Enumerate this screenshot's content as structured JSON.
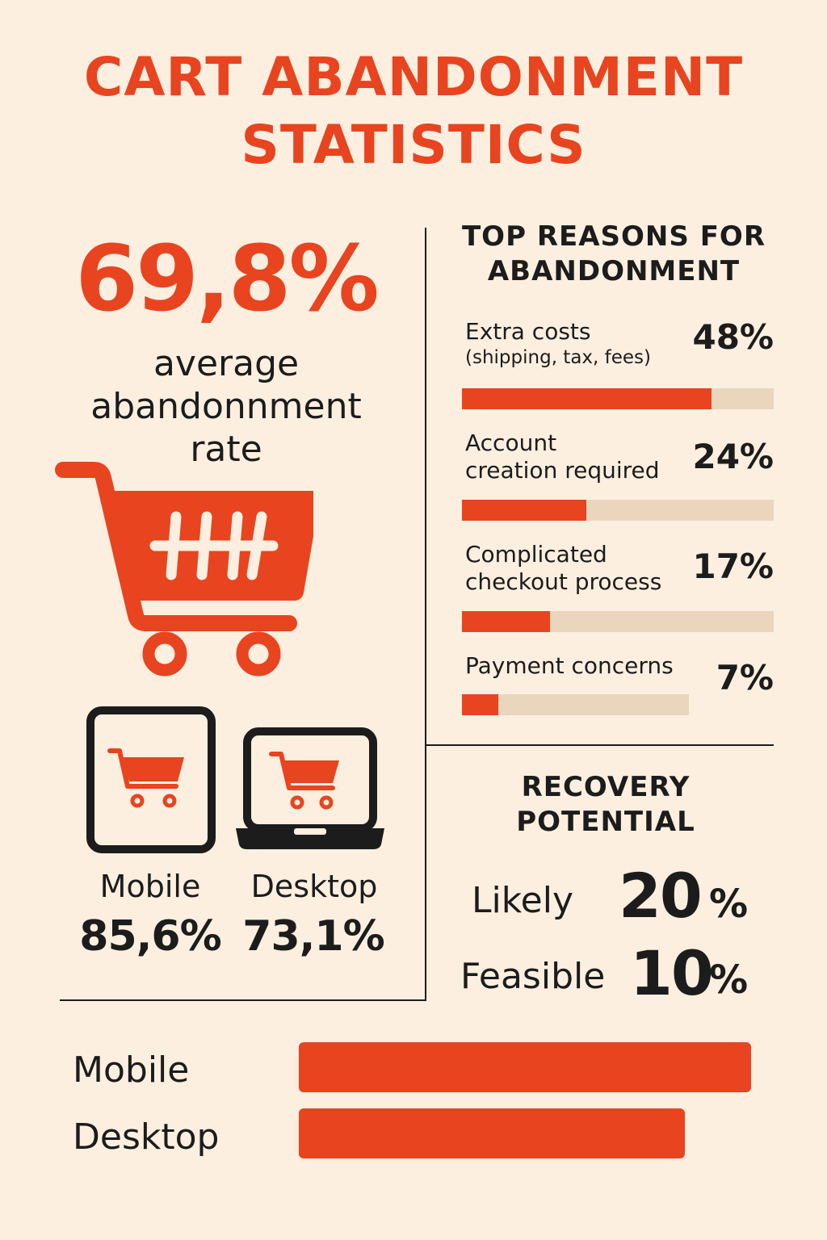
{
  "title": {
    "line1": "CART ABANDONMENT",
    "line2": "STATISTICS"
  },
  "headline": {
    "value": "69,8%",
    "label_lines": [
      "average",
      "abandonnment",
      "rate"
    ]
  },
  "devices": [
    {
      "label": "Mobile",
      "value": "85,6%"
    },
    {
      "label": "Desktop",
      "value": "73,1%"
    }
  ],
  "reasons": {
    "title_lines": [
      "TOP REASONS FOR",
      "ABANDONMENT"
    ],
    "items": [
      {
        "label_lines": [
          "Extra costs"
        ],
        "sub": "(shipping, tax, fees)",
        "value_label": "48%"
      },
      {
        "label_lines": [
          "Account",
          "creation required"
        ],
        "sub": "",
        "value_label": "24%"
      },
      {
        "label_lines": [
          "Complicated",
          "checkout process"
        ],
        "sub": "",
        "value_label": "17%"
      },
      {
        "label_lines": [
          "Payment concerns"
        ],
        "sub": "",
        "value_label": "7%"
      }
    ]
  },
  "recovery": {
    "title_lines": [
      "RECOVERY",
      "POTENTIAL"
    ],
    "items": [
      {
        "label": "Likely",
        "number": "20",
        "unit": "%"
      },
      {
        "label": "Feasible",
        "number": "10",
        "unit": "%"
      }
    ]
  },
  "comparison": {
    "items": [
      {
        "label": "Mobile"
      },
      {
        "label": "Desktop"
      }
    ]
  },
  "colors": {
    "accent": "#e8441f",
    "background": "#fcefe0",
    "track": "#ead6bd",
    "ink": "#1c1c1c"
  },
  "chart_data": [
    {
      "type": "bar",
      "categories": [
        "Extra costs (shipping, tax, fees)",
        "Account creation required",
        "Complicated checkout process",
        "Payment concerns"
      ],
      "values": [
        48,
        24,
        17,
        7
      ],
      "title": "TOP REASONS FOR ABANDONMENT",
      "xlabel": "",
      "ylabel": "",
      "ylim": [
        0,
        60
      ],
      "unit": "%"
    },
    {
      "type": "bar",
      "categories": [
        "Mobile",
        "Desktop"
      ],
      "values": [
        85.6,
        73.1
      ],
      "title": "",
      "xlabel": "",
      "ylabel": "",
      "unit": "%"
    }
  ]
}
